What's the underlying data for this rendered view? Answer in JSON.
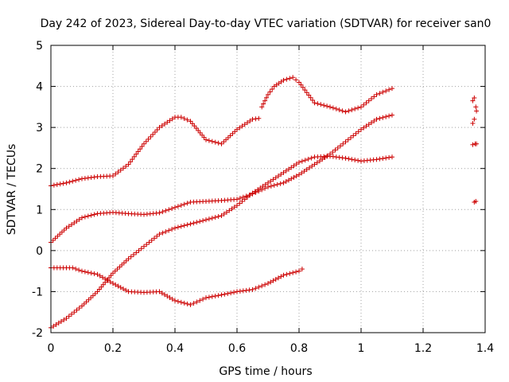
{
  "chart_data": {
    "type": "scatter",
    "title": "Day 242 of 2023, Sidereal Day-to-day VTEC variation (SDTVAR) for receiver san0",
    "xlabel": "GPS time / hours",
    "ylabel": "SDTVAR / TECUs",
    "xlim": [
      0,
      1.4
    ],
    "ylim": [
      -2,
      5
    ],
    "xticks": [
      "0",
      "0.2",
      "0.4",
      "0.6",
      "0.8",
      "1",
      "1.2",
      "1.4"
    ],
    "yticks": [
      "-2",
      "-1",
      "0",
      "1",
      "2",
      "3",
      "4",
      "5"
    ],
    "grid": true,
    "marker": "+",
    "marker_color": "#cc0000",
    "series": [
      {
        "x": [
          0.0,
          0.05,
          0.1,
          0.15,
          0.2,
          0.25,
          0.3,
          0.35,
          0.4,
          0.42,
          0.45,
          0.5,
          0.55,
          0.6,
          0.65,
          0.67
        ],
        "y": [
          1.58,
          1.65,
          1.75,
          1.8,
          1.82,
          2.1,
          2.6,
          3.0,
          3.25,
          3.25,
          3.15,
          2.7,
          2.6,
          2.95,
          3.2,
          3.22
        ]
      },
      {
        "x": [
          0.68,
          0.7,
          0.72,
          0.75,
          0.78,
          0.8,
          0.85,
          0.9,
          0.95,
          1.0,
          1.05,
          1.1
        ],
        "y": [
          3.5,
          3.8,
          4.0,
          4.15,
          4.22,
          4.1,
          3.6,
          3.5,
          3.38,
          3.5,
          3.8,
          3.95
        ]
      },
      {
        "x": [
          0.0,
          0.05,
          0.1,
          0.15,
          0.2,
          0.25,
          0.3,
          0.35,
          0.4,
          0.45,
          0.5,
          0.55,
          0.6,
          0.65,
          0.7,
          0.75,
          0.8,
          0.85,
          0.9,
          0.95,
          1.0,
          1.05,
          1.1
        ],
        "y": [
          0.2,
          0.55,
          0.8,
          0.9,
          0.93,
          0.9,
          0.88,
          0.92,
          1.05,
          1.18,
          1.2,
          1.22,
          1.25,
          1.38,
          1.55,
          1.65,
          1.85,
          2.1,
          2.35,
          2.65,
          2.95,
          3.2,
          3.3
        ]
      },
      {
        "x": [
          0.0,
          0.05,
          0.1,
          0.15,
          0.2,
          0.25,
          0.3,
          0.35,
          0.4,
          0.45,
          0.5,
          0.55,
          0.6,
          0.65,
          0.7,
          0.75,
          0.8,
          0.85,
          0.9,
          0.95,
          1.0,
          1.05,
          1.1
        ],
        "y": [
          -1.88,
          -1.65,
          -1.35,
          -1.0,
          -0.55,
          -0.2,
          0.1,
          0.4,
          0.55,
          0.65,
          0.75,
          0.85,
          1.1,
          1.4,
          1.65,
          1.9,
          2.15,
          2.28,
          2.3,
          2.25,
          2.18,
          2.22,
          2.28
        ]
      },
      {
        "x": [
          0.0,
          0.05,
          0.07,
          0.1,
          0.15,
          0.2,
          0.25,
          0.3,
          0.35,
          0.4,
          0.45,
          0.5,
          0.55,
          0.6,
          0.65,
          0.7,
          0.75,
          0.8,
          0.81
        ],
        "y": [
          -0.42,
          -0.42,
          -0.42,
          -0.5,
          -0.58,
          -0.8,
          -1.0,
          -1.02,
          -1.0,
          -1.22,
          -1.32,
          -1.15,
          -1.08,
          -1.0,
          -0.95,
          -0.8,
          -0.6,
          -0.5,
          -0.45
        ]
      },
      {
        "x": [
          1.36,
          1.365,
          1.37,
          1.372,
          1.365,
          1.36,
          1.368,
          1.372,
          1.36,
          1.365,
          1.37
        ],
        "y": [
          3.65,
          3.72,
          3.5,
          3.4,
          3.2,
          3.1,
          2.6,
          2.6,
          2.58,
          1.18,
          1.2
        ]
      }
    ]
  }
}
